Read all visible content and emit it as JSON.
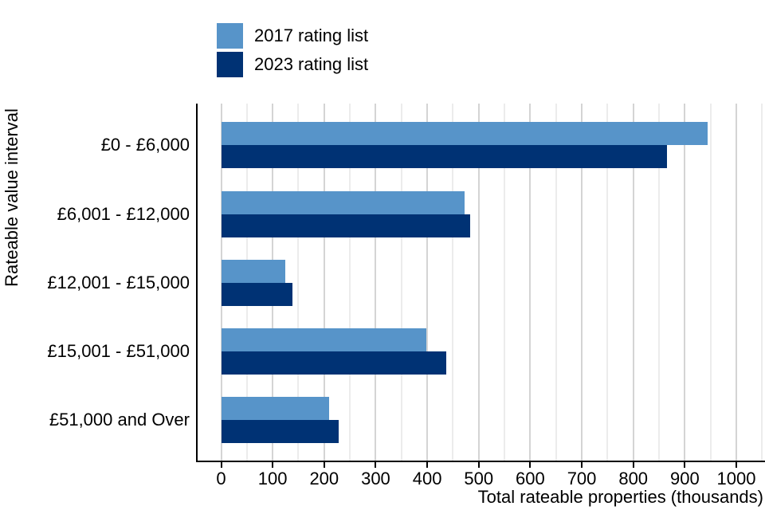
{
  "chart_data": {
    "type": "bar",
    "orientation": "horizontal",
    "categories": [
      "£0 - £6,000",
      "£6,001 - £12,000",
      "£12,001 - £15,000",
      "£15,001 - £51,000",
      "£51,000 and Over"
    ],
    "series": [
      {
        "name": "2017 rating list",
        "color": "#5794C9",
        "values": [
          945,
          472,
          125,
          398,
          210
        ]
      },
      {
        "name": "2023 rating list",
        "color": "#003274",
        "values": [
          865,
          484,
          138,
          437,
          228
        ]
      }
    ],
    "title": "",
    "xlabel": "Total rateable properties (thousands)",
    "ylabel": "Rateable value interval",
    "xlim": [
      0,
      1050
    ],
    "xticks": [
      0,
      100,
      200,
      300,
      400,
      500,
      600,
      700,
      800,
      900,
      1000
    ],
    "minor_grid_step": 50,
    "grid": "vertical",
    "legend_position": "top-left",
    "colors": {
      "major_gridline": "#d4d4d4",
      "minor_gridline": "#ececec",
      "axis": "#000000",
      "text": "#000000",
      "background": "#ffffff"
    }
  }
}
